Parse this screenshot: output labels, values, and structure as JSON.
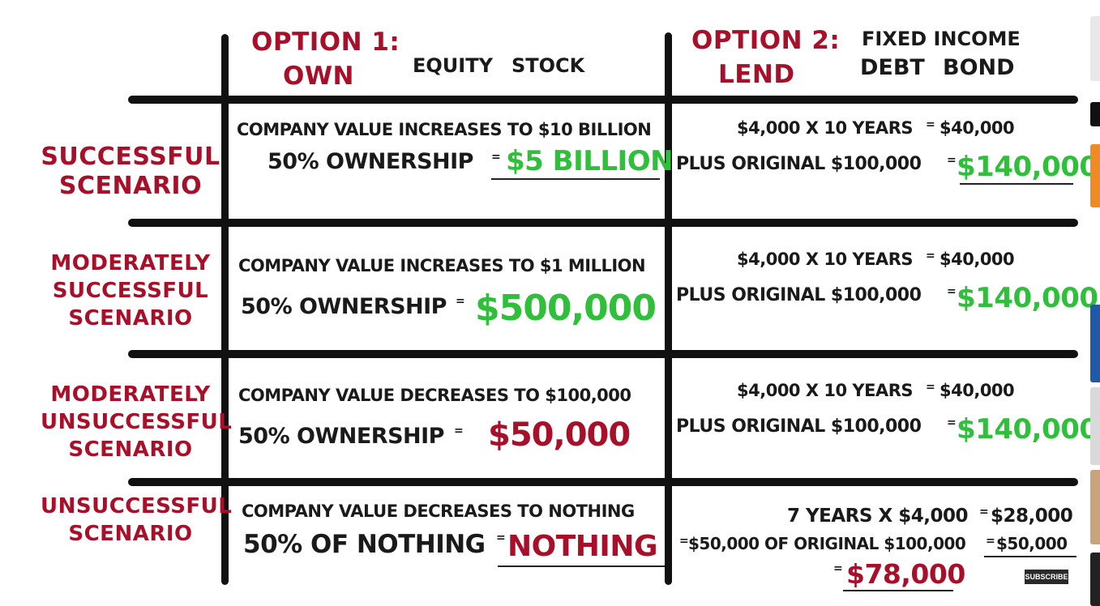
{
  "header": {
    "option1_title": "OPTION 1:",
    "option1_name": "OWN",
    "option1_sub1": "EQUITY",
    "option1_sub2": "STOCK",
    "option2_title": "OPTION 2:",
    "option2_name": "LEND",
    "option2_sub_top": "FIXED INCOME",
    "option2_sub1": "DEBT",
    "option2_sub2": "BOND"
  },
  "rows": [
    {
      "label_lines": [
        "SUCCESSFUL",
        "SCENARIO"
      ],
      "own_line1": "COMPANY VALUE INCREASES TO $10 BILLION",
      "own_line2": "50% OWNERSHIP",
      "own_result": "$5 BILLION",
      "lend_line1": "$4,000 X 10 YEARS",
      "lend_line1_result": "$40,000",
      "lend_line2": "PLUS ORIGINAL $100,000",
      "lend_result": "$140,000"
    },
    {
      "label_lines": [
        "MODERATELY",
        "SUCCESSFUL",
        "SCENARIO"
      ],
      "own_line1": "COMPANY VALUE INCREASES TO $1 MILLION",
      "own_line2": "50% OWNERSHIP",
      "own_result": "$500,000",
      "lend_line1": "$4,000 X 10 YEARS",
      "lend_line1_result": "$40,000",
      "lend_line2": "PLUS ORIGINAL $100,000",
      "lend_result": "$140,000"
    },
    {
      "label_lines": [
        "MODERATELY",
        "UNSUCCESSFUL",
        "SCENARIO"
      ],
      "own_line1": "COMPANY VALUE DECREASES TO $100,000",
      "own_line2": "50% OWNERSHIP",
      "own_result": "$50,000",
      "lend_line1": "$4,000 X 10 YEARS",
      "lend_line1_result": "$40,000",
      "lend_line2": "PLUS ORIGINAL $100,000",
      "lend_result": "$140,000"
    },
    {
      "label_lines": [
        "UNSUCCESSFUL",
        "SCENARIO"
      ],
      "own_line1": "COMPANY VALUE DECREASES TO NOTHING",
      "own_line2": "50% OF NOTHING",
      "own_result": "NOTHING",
      "lend_line1": "7 YEARS X $4,000",
      "lend_line1_result": "$28,000",
      "lend_line2": "$50,000 OF ORIGINAL $100,000",
      "lend_line2_result": "$50,000",
      "lend_result": "$78,000"
    }
  ],
  "equals_sign": "=",
  "subscribe_label": "SUBSCRIBE",
  "colors": {
    "label_red": "#a8102a",
    "result_green": "#2fbf3a",
    "ink": "#111111"
  }
}
